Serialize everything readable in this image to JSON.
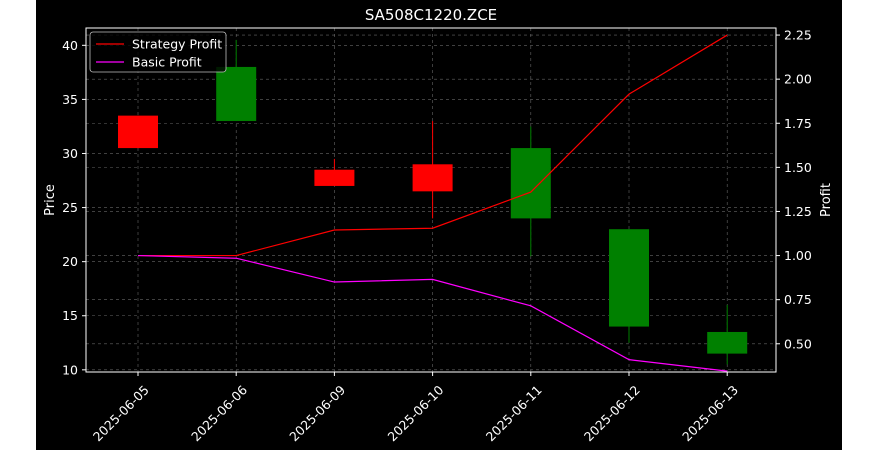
{
  "chart_data": {
    "type": "candlestick",
    "title": "SA508C1220.ZCE",
    "xlabel": "",
    "ylabel": "Price",
    "y2label": "Profit",
    "categories": [
      "2025-06-05",
      "2025-06-06",
      "2025-06-09",
      "2025-06-10",
      "2025-06-11",
      "2025-06-12",
      "2025-06-13"
    ],
    "ylim": [
      9.8,
      41.6
    ],
    "yticks": [
      10,
      15,
      20,
      25,
      30,
      35,
      40
    ],
    "y2lim": [
      0.34,
      2.29
    ],
    "y2ticks": [
      0.5,
      0.75,
      1.0,
      1.25,
      1.5,
      1.75,
      2.0,
      2.25
    ],
    "y2ticklabels": [
      "0.50",
      "0.75",
      "1.00",
      "1.25",
      "1.50",
      "1.75",
      "2.00",
      "2.25"
    ],
    "candles": [
      {
        "date": "2025-06-05",
        "open": 33.5,
        "close": 30.5,
        "high": 33.5,
        "low": 30.5,
        "direction": "down"
      },
      {
        "date": "2025-06-06",
        "open": 33.0,
        "close": 38.0,
        "high": 40.5,
        "low": 33.0,
        "direction": "up"
      },
      {
        "date": "2025-06-09",
        "open": 28.5,
        "close": 27.0,
        "high": 29.5,
        "low": 27.0,
        "direction": "down"
      },
      {
        "date": "2025-06-10",
        "open": 29.0,
        "close": 26.5,
        "high": 33.0,
        "low": 24.0,
        "direction": "down"
      },
      {
        "date": "2025-06-11",
        "open": 24.0,
        "close": 30.5,
        "high": 32.5,
        "low": 20.5,
        "direction": "up"
      },
      {
        "date": "2025-06-12",
        "open": 14.0,
        "close": 23.0,
        "high": 23.0,
        "low": 12.5,
        "direction": "up"
      },
      {
        "date": "2025-06-13",
        "open": 11.5,
        "close": 13.5,
        "high": 16.0,
        "low": 10.5,
        "direction": "up"
      }
    ],
    "series": [
      {
        "name": "Strategy Profit",
        "color": "#ff0000",
        "axis": "right",
        "values": [
          1.0,
          1.0,
          1.145,
          1.155,
          1.36,
          1.915,
          2.25
        ]
      },
      {
        "name": "Basic Profit",
        "color": "#ff00ff",
        "axis": "right",
        "values": [
          1.0,
          0.985,
          0.85,
          0.865,
          0.715,
          0.41,
          0.345
        ]
      }
    ],
    "up_color": "#008000",
    "down_color": "#ff0000",
    "background": "#000000",
    "grid": true,
    "legend_position": "top-left"
  }
}
